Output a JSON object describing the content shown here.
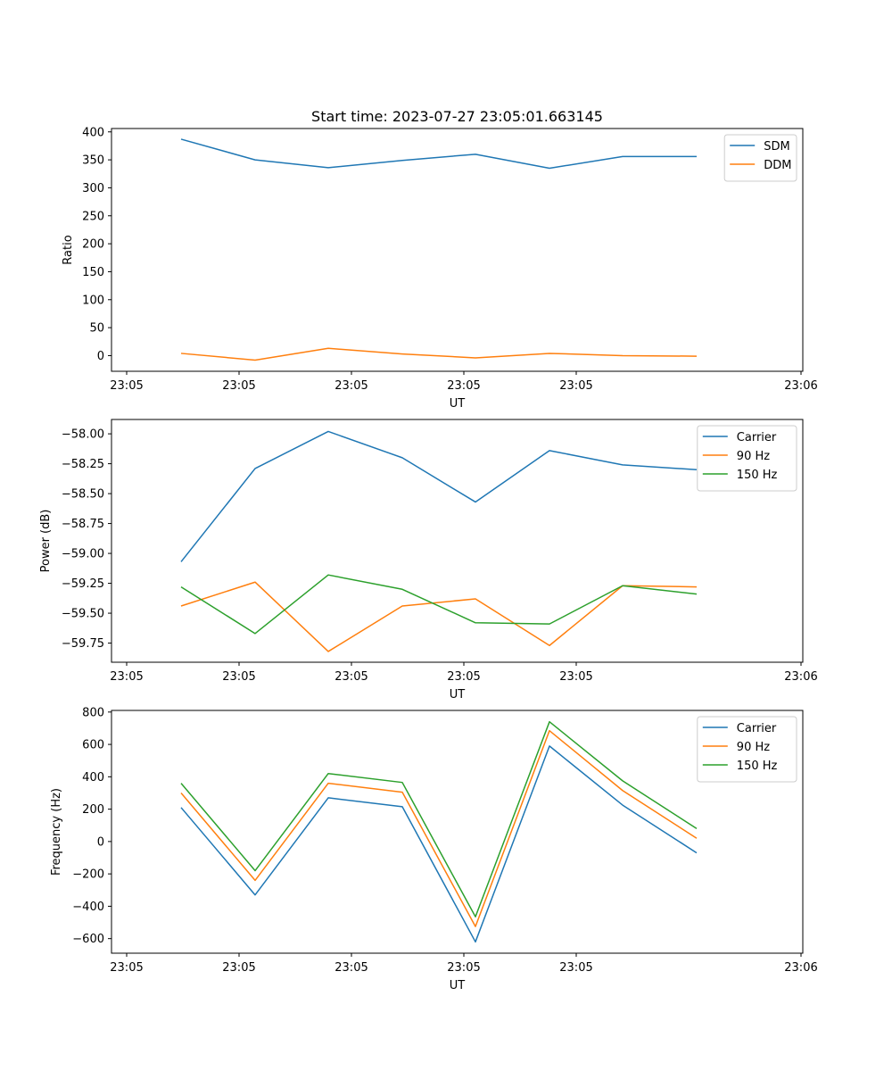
{
  "figure": {
    "title": "Start time: 2023-07-27 23:05:01.663145"
  },
  "chart_data": [
    {
      "type": "line",
      "xlabel": "UT",
      "ylabel": "Ratio",
      "x_ticks": [
        "23:05",
        "23:05",
        "23:05",
        "23:05",
        "23:05",
        "23:06"
      ],
      "y_ticks": [
        "0",
        "50",
        "100",
        "150",
        "200",
        "250",
        "300",
        "350",
        "400"
      ],
      "ylim": [
        -28,
        406
      ],
      "y_tick_values": [
        0,
        50,
        100,
        150,
        200,
        250,
        300,
        350,
        400
      ],
      "legend": "top-right",
      "series": [
        {
          "name": "SDM",
          "color": "#1f77b4",
          "values": [
            387,
            350,
            336,
            349,
            360,
            335,
            356,
            356
          ]
        },
        {
          "name": "DDM",
          "color": "#ff7f0e",
          "values": [
            4,
            -8,
            13,
            3,
            -4,
            4,
            0,
            -1
          ]
        }
      ]
    },
    {
      "type": "line",
      "xlabel": "UT",
      "ylabel": "Power (dB)",
      "x_ticks": [
        "23:05",
        "23:05",
        "23:05",
        "23:05",
        "23:05",
        "23:06"
      ],
      "y_ticks": [
        "−59.75",
        "−59.50",
        "−59.25",
        "−59.00",
        "−58.75",
        "−58.50",
        "−58.25",
        "−58.00"
      ],
      "y_tick_values": [
        -59.75,
        -59.5,
        -59.25,
        -59.0,
        -58.75,
        -58.5,
        -58.25,
        -58.0
      ],
      "ylim": [
        -59.91,
        -57.88
      ],
      "legend": "top-right",
      "series": [
        {
          "name": "Carrier",
          "color": "#1f77b4",
          "values": [
            -59.07,
            -58.29,
            -57.98,
            -58.2,
            -58.57,
            -58.14,
            -58.26,
            -58.3
          ]
        },
        {
          "name": "90 Hz",
          "color": "#ff7f0e",
          "values": [
            -59.44,
            -59.24,
            -59.82,
            -59.44,
            -59.38,
            -59.77,
            -59.27,
            -59.28
          ]
        },
        {
          "name": "150 Hz",
          "color": "#2ca02c",
          "values": [
            -59.28,
            -59.67,
            -59.18,
            -59.3,
            -59.58,
            -59.59,
            -59.27,
            -59.34
          ]
        }
      ]
    },
    {
      "type": "line",
      "xlabel": "UT",
      "ylabel": "Frequency (Hz)",
      "x_ticks": [
        "23:05",
        "23:05",
        "23:05",
        "23:05",
        "23:05",
        "23:06"
      ],
      "y_ticks": [
        "−600",
        "−400",
        "−200",
        "0",
        "200",
        "400",
        "600",
        "800"
      ],
      "y_tick_values": [
        -600,
        -400,
        -200,
        0,
        200,
        400,
        600,
        800
      ],
      "ylim": [
        -690,
        810
      ],
      "legend": "top-right",
      "series": [
        {
          "name": "Carrier",
          "color": "#1f77b4",
          "values": [
            210,
            -330,
            270,
            215,
            -620,
            590,
            225,
            -70
          ]
        },
        {
          "name": "90 Hz",
          "color": "#ff7f0e",
          "values": [
            300,
            -240,
            360,
            305,
            -525,
            685,
            315,
            20
          ]
        },
        {
          "name": "150 Hz",
          "color": "#2ca02c",
          "values": [
            360,
            -180,
            420,
            365,
            -465,
            740,
            375,
            80
          ]
        }
      ]
    }
  ]
}
